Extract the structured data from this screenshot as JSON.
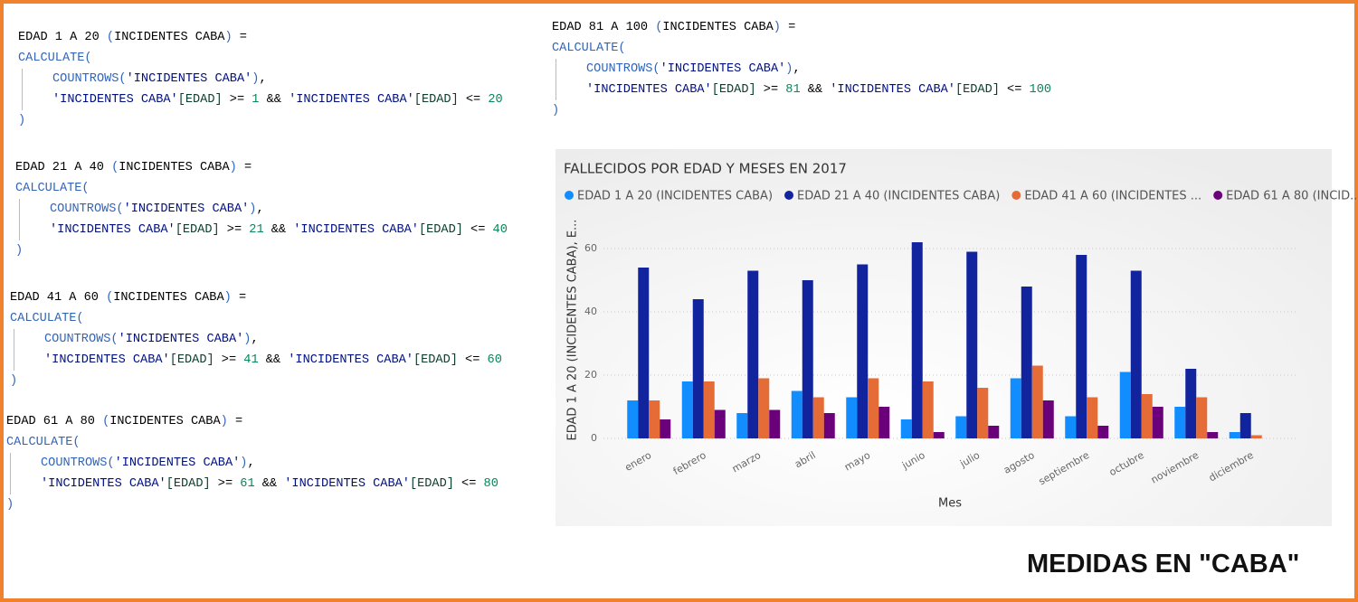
{
  "code_blocks": [
    {
      "lines": [
        [
          [
            "EDAD 1 A 20 ",
            "#000000"
          ],
          [
            "(",
            "#3165bb"
          ],
          [
            "INCIDENTES CABA",
            "#000000"
          ],
          [
            ")",
            "#3165bb"
          ],
          [
            " =",
            "#000000"
          ]
        ],
        [
          [
            "CALCULATE(",
            "#3165bb"
          ]
        ],
        [
          [
            "COUNTROWS",
            "#3165bb"
          ],
          [
            "(",
            "#3165bb"
          ],
          [
            "'INCIDENTES CABA'",
            "#001080"
          ],
          [
            ")",
            "#3165bb"
          ],
          [
            ",",
            "#000000"
          ]
        ],
        [
          [
            "'INCIDENTES CABA'",
            "#001080"
          ],
          [
            "[EDAD]",
            "#0b3d2e"
          ],
          [
            " >= ",
            "#000000"
          ],
          [
            "1",
            "#098658"
          ],
          [
            " && ",
            "#000000"
          ],
          [
            "'INCIDENTES CABA'",
            "#001080"
          ],
          [
            "[EDAD]",
            "#0b3d2e"
          ],
          [
            " <= ",
            "#000000"
          ],
          [
            "20",
            "#098658"
          ]
        ],
        [
          [
            ")",
            "#3165bb"
          ]
        ]
      ]
    },
    {
      "lines": [
        [
          [
            "EDAD 21 A 40 ",
            "#000000"
          ],
          [
            "(",
            "#3165bb"
          ],
          [
            "INCIDENTES CABA",
            "#000000"
          ],
          [
            ")",
            "#3165bb"
          ],
          [
            " =",
            "#000000"
          ]
        ],
        [
          [
            "CALCULATE(",
            "#3165bb"
          ]
        ],
        [
          [
            "COUNTROWS",
            "#3165bb"
          ],
          [
            "(",
            "#3165bb"
          ],
          [
            "'INCIDENTES CABA'",
            "#001080"
          ],
          [
            ")",
            "#3165bb"
          ],
          [
            ",",
            "#000000"
          ]
        ],
        [
          [
            "'INCIDENTES CABA'",
            "#001080"
          ],
          [
            "[EDAD]",
            "#0b3d2e"
          ],
          [
            " >= ",
            "#000000"
          ],
          [
            "21",
            "#098658"
          ],
          [
            " && ",
            "#000000"
          ],
          [
            "'INCIDENTES CABA'",
            "#001080"
          ],
          [
            "[EDAD]",
            "#0b3d2e"
          ],
          [
            " <= ",
            "#000000"
          ],
          [
            "40",
            "#098658"
          ]
        ],
        [
          [
            ")",
            "#3165bb"
          ]
        ]
      ]
    },
    {
      "lines": [
        [
          [
            "EDAD 41 A 60 ",
            "#000000"
          ],
          [
            "(",
            "#3165bb"
          ],
          [
            "INCIDENTES CABA",
            "#000000"
          ],
          [
            ")",
            "#3165bb"
          ],
          [
            " =",
            "#000000"
          ]
        ],
        [
          [
            "CALCULATE(",
            "#3165bb"
          ]
        ],
        [
          [
            "COUNTROWS",
            "#3165bb"
          ],
          [
            "(",
            "#3165bb"
          ],
          [
            "'INCIDENTES CABA'",
            "#001080"
          ],
          [
            ")",
            "#3165bb"
          ],
          [
            ",",
            "#000000"
          ]
        ],
        [
          [
            "'INCIDENTES CABA'",
            "#001080"
          ],
          [
            "[EDAD]",
            "#0b3d2e"
          ],
          [
            " >= ",
            "#000000"
          ],
          [
            "41",
            "#098658"
          ],
          [
            " && ",
            "#000000"
          ],
          [
            "'INCIDENTES CABA'",
            "#001080"
          ],
          [
            "[EDAD]",
            "#0b3d2e"
          ],
          [
            " <= ",
            "#000000"
          ],
          [
            "60",
            "#098658"
          ]
        ],
        [
          [
            ")",
            "#3165bb"
          ]
        ]
      ]
    },
    {
      "lines": [
        [
          [
            "EDAD 61 A 80 ",
            "#000000"
          ],
          [
            "(",
            "#3165bb"
          ],
          [
            "INCIDENTES CABA",
            "#000000"
          ],
          [
            ")",
            "#3165bb"
          ],
          [
            " =",
            "#000000"
          ]
        ],
        [
          [
            "CALCULATE(",
            "#3165bb"
          ]
        ],
        [
          [
            "COUNTROWS",
            "#3165bb"
          ],
          [
            "(",
            "#3165bb"
          ],
          [
            "'INCIDENTES CABA'",
            "#001080"
          ],
          [
            ")",
            "#3165bb"
          ],
          [
            ",",
            "#000000"
          ]
        ],
        [
          [
            "'INCIDENTES CABA'",
            "#001080"
          ],
          [
            "[EDAD]",
            "#0b3d2e"
          ],
          [
            " >= ",
            "#000000"
          ],
          [
            "61",
            "#098658"
          ],
          [
            " && ",
            "#000000"
          ],
          [
            "'INCIDENTES CABA'",
            "#001080"
          ],
          [
            "[EDAD]",
            "#0b3d2e"
          ],
          [
            " <= ",
            "#000000"
          ],
          [
            "80",
            "#098658"
          ]
        ],
        [
          [
            ")",
            "#3165bb"
          ]
        ]
      ]
    },
    {
      "lines": [
        [
          [
            "EDAD 81 A 100 ",
            "#000000"
          ],
          [
            "(",
            "#3165bb"
          ],
          [
            "INCIDENTES CABA",
            "#000000"
          ],
          [
            ")",
            "#3165bb"
          ],
          [
            " =",
            "#000000"
          ]
        ],
        [
          [
            "CALCULATE(",
            "#3165bb"
          ]
        ],
        [
          [
            "COUNTROWS",
            "#3165bb"
          ],
          [
            "(",
            "#3165bb"
          ],
          [
            "'INCIDENTES CABA'",
            "#001080"
          ],
          [
            ")",
            "#3165bb"
          ],
          [
            ",",
            "#000000"
          ]
        ],
        [
          [
            "'INCIDENTES CABA'",
            "#001080"
          ],
          [
            "[EDAD]",
            "#0b3d2e"
          ],
          [
            " >= ",
            "#000000"
          ],
          [
            "81",
            "#098658"
          ],
          [
            " && ",
            "#000000"
          ],
          [
            "'INCIDENTES CABA'",
            "#001080"
          ],
          [
            "[EDAD]",
            "#0b3d2e"
          ],
          [
            " <= ",
            "#000000"
          ],
          [
            "100",
            "#098658"
          ]
        ],
        [
          [
            ")",
            "#3165bb"
          ]
        ]
      ]
    }
  ],
  "chart_data": {
    "type": "bar",
    "title": "FALLECIDOS POR EDAD Y MESES EN 2017",
    "x_label": "Mes",
    "y_label": "EDAD 1 A 20 (INCIDENTES CABA), E...",
    "categories": [
      "enero",
      "febrero",
      "marzo",
      "abril",
      "mayo",
      "junio",
      "julio",
      "agosto",
      "septiembre",
      "octubre",
      "noviembre",
      "diciembre"
    ],
    "series": [
      {
        "name": "EDAD 1 A 20 (INCIDENTES CABA)",
        "color": "#118dff",
        "values": [
          12,
          18,
          8,
          15,
          13,
          6,
          7,
          19,
          7,
          21,
          10,
          2
        ]
      },
      {
        "name": "EDAD 21 A 40 (INCIDENTES CABA)",
        "color": "#12239e",
        "values": [
          54,
          44,
          53,
          50,
          55,
          62,
          59,
          48,
          58,
          53,
          22,
          8
        ]
      },
      {
        "name": "EDAD 41 A 60 (INCIDENTES ...",
        "color": "#e66c37",
        "values": [
          12,
          18,
          19,
          13,
          19,
          18,
          16,
          23,
          13,
          14,
          13,
          1
        ]
      },
      {
        "name": "EDAD 61 A 80 (INCID...",
        "color": "#6b007b",
        "values": [
          6,
          9,
          9,
          8,
          10,
          2,
          4,
          12,
          4,
          10,
          2,
          null
        ]
      }
    ],
    "ylim": [
      0,
      65
    ],
    "yticks": [
      0,
      20,
      40,
      60
    ],
    "grid": true
  },
  "footer": "MEDIDAS EN \"CABA\""
}
